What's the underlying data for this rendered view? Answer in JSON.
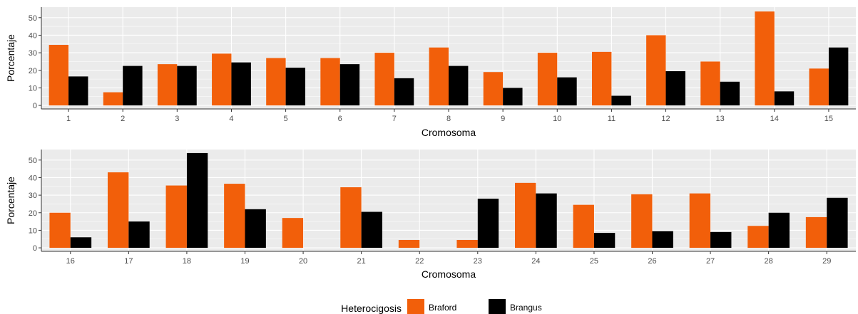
{
  "colors": {
    "braford": "#F25F0A",
    "brangus": "#000000",
    "panel_bg": "#EBEBEB",
    "grid": "#FFFFFF"
  },
  "legend": {
    "title": "Heterocigosis",
    "position": "bottom",
    "items": [
      "Braford",
      "Brangus"
    ]
  },
  "chart_data": [
    {
      "type": "bar",
      "xlabel": "Cromosoma",
      "ylabel": "Porcentaje",
      "ylim": [
        -2,
        56
      ],
      "yticks": [
        0,
        10,
        20,
        30,
        40,
        50
      ],
      "grid": true,
      "categories": [
        "1",
        "2",
        "3",
        "4",
        "5",
        "6",
        "7",
        "8",
        "9",
        "10",
        "11",
        "12",
        "13",
        "14",
        "15"
      ],
      "series": [
        {
          "name": "Braford",
          "values": [
            34.5,
            7.5,
            23.5,
            29.5,
            27,
            27,
            30,
            33,
            19,
            30,
            30.5,
            40,
            25,
            53.5,
            21
          ]
        },
        {
          "name": "Brangus",
          "values": [
            16.5,
            22.5,
            22.5,
            24.5,
            21.5,
            23.5,
            15.5,
            22.5,
            10,
            16,
            5.5,
            19.5,
            13.5,
            8,
            33
          ]
        }
      ]
    },
    {
      "type": "bar",
      "xlabel": "Cromosoma",
      "ylabel": "Porcentaje",
      "ylim": [
        -2,
        56
      ],
      "yticks": [
        0,
        10,
        20,
        30,
        40,
        50
      ],
      "grid": true,
      "categories": [
        "16",
        "17",
        "18",
        "19",
        "20",
        "21",
        "22",
        "23",
        "24",
        "25",
        "26",
        "27",
        "28",
        "29"
      ],
      "series": [
        {
          "name": "Braford",
          "values": [
            20,
            43,
            35.5,
            36.5,
            17,
            34.5,
            4.5,
            4.5,
            37,
            24.5,
            30.5,
            31,
            12.5,
            17.5
          ]
        },
        {
          "name": "Brangus",
          "values": [
            6,
            15,
            54,
            22,
            0,
            20.5,
            0,
            28,
            31,
            8.5,
            9.5,
            9,
            20,
            28.5
          ]
        }
      ]
    }
  ]
}
